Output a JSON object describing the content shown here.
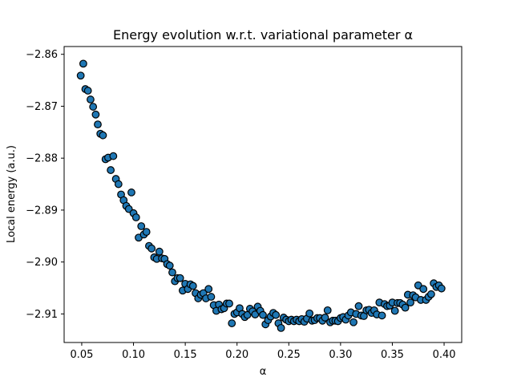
{
  "chart_data": {
    "type": "scatter",
    "title": "Energy evolution w.r.t. variational parameter α",
    "xlabel": "α",
    "ylabel": "Local energy (a.u.)",
    "xlim": [
      0.033,
      0.417
    ],
    "ylim": [
      -2.9155,
      -2.8585
    ],
    "xticks": [
      0.05,
      0.1,
      0.15,
      0.2,
      0.25,
      0.3,
      0.35,
      0.4
    ],
    "xtick_labels": [
      "0.05",
      "0.10",
      "0.15",
      "0.20",
      "0.25",
      "0.30",
      "0.35",
      "0.40"
    ],
    "yticks": [
      -2.86,
      -2.87,
      -2.88,
      -2.89,
      -2.9,
      -2.91
    ],
    "ytick_labels": [
      "−2.86",
      "−2.87",
      "−2.88",
      "−2.89",
      "−2.90",
      "−2.91"
    ],
    "grid": false,
    "marker_color": "#1f77b4",
    "marker_edge_color": "#000000",
    "points": [
      [
        0.049,
        -2.8641
      ],
      [
        0.0515,
        -2.8618
      ],
      [
        0.0535,
        -2.8667
      ],
      [
        0.056,
        -2.867
      ],
      [
        0.0585,
        -2.8687
      ],
      [
        0.061,
        -2.8701
      ],
      [
        0.0635,
        -2.8716
      ],
      [
        0.0655,
        -2.8735
      ],
      [
        0.068,
        -2.8753
      ],
      [
        0.0705,
        -2.8756
      ],
      [
        0.073,
        -2.8802
      ],
      [
        0.0755,
        -2.8799
      ],
      [
        0.078,
        -2.8823
      ],
      [
        0.0805,
        -2.8796
      ],
      [
        0.083,
        -2.884
      ],
      [
        0.0855,
        -2.885
      ],
      [
        0.088,
        -2.887
      ],
      [
        0.0905,
        -2.8881
      ],
      [
        0.093,
        -2.8892
      ],
      [
        0.0955,
        -2.8898
      ],
      [
        0.098,
        -2.8866
      ],
      [
        0.1,
        -2.8906
      ],
      [
        0.1025,
        -2.8914
      ],
      [
        0.105,
        -2.8953
      ],
      [
        0.1075,
        -2.8931
      ],
      [
        0.11,
        -2.8947
      ],
      [
        0.1125,
        -2.8942
      ],
      [
        0.115,
        -2.8969
      ],
      [
        0.1175,
        -2.8974
      ],
      [
        0.12,
        -2.8991
      ],
      [
        0.1225,
        -2.8994
      ],
      [
        0.125,
        -2.898
      ],
      [
        0.1275,
        -2.8993
      ],
      [
        0.13,
        -2.8994
      ],
      [
        0.1325,
        -2.9004
      ],
      [
        0.135,
        -2.9007
      ],
      [
        0.1375,
        -2.902
      ],
      [
        0.14,
        -2.9037
      ],
      [
        0.1425,
        -2.9031
      ],
      [
        0.145,
        -2.9031
      ],
      [
        0.1475,
        -2.9055
      ],
      [
        0.15,
        -2.9042
      ],
      [
        0.1525,
        -2.9052
      ],
      [
        0.155,
        -2.9043
      ],
      [
        0.1575,
        -2.9046
      ],
      [
        0.16,
        -2.906
      ],
      [
        0.1625,
        -2.907
      ],
      [
        0.165,
        -2.9063
      ],
      [
        0.1675,
        -2.906
      ],
      [
        0.17,
        -2.907
      ],
      [
        0.1725,
        -2.9052
      ],
      [
        0.175,
        -2.9067
      ],
      [
        0.1775,
        -2.9083
      ],
      [
        0.18,
        -2.9094
      ],
      [
        0.1825,
        -2.9082
      ],
      [
        0.185,
        -2.9091
      ],
      [
        0.1875,
        -2.9089
      ],
      [
        0.19,
        -2.908
      ],
      [
        0.1925,
        -2.908
      ],
      [
        0.195,
        -2.9118
      ],
      [
        0.1975,
        -2.91
      ],
      [
        0.2,
        -2.9097
      ],
      [
        0.2025,
        -2.9089
      ],
      [
        0.205,
        -2.91
      ],
      [
        0.2075,
        -2.9106
      ],
      [
        0.21,
        -2.9102
      ],
      [
        0.2125,
        -2.909
      ],
      [
        0.215,
        -2.9095
      ],
      [
        0.2175,
        -2.9101
      ],
      [
        0.22,
        -2.9086
      ],
      [
        0.2225,
        -2.9094
      ],
      [
        0.225,
        -2.9102
      ],
      [
        0.2275,
        -2.912
      ],
      [
        0.23,
        -2.9112
      ],
      [
        0.2325,
        -2.9105
      ],
      [
        0.235,
        -2.9098
      ],
      [
        0.2375,
        -2.9102
      ],
      [
        0.24,
        -2.9118
      ],
      [
        0.2425,
        -2.9127
      ],
      [
        0.245,
        -2.9107
      ],
      [
        0.2475,
        -2.9111
      ],
      [
        0.25,
        -2.9114
      ],
      [
        0.2525,
        -2.9111
      ],
      [
        0.255,
        -2.9114
      ],
      [
        0.2575,
        -2.9111
      ],
      [
        0.26,
        -2.9114
      ],
      [
        0.2625,
        -2.911
      ],
      [
        0.265,
        -2.9115
      ],
      [
        0.2675,
        -2.9109
      ],
      [
        0.27,
        -2.9099
      ],
      [
        0.2725,
        -2.9113
      ],
      [
        0.275,
        -2.9112
      ],
      [
        0.2775,
        -2.9108
      ],
      [
        0.28,
        -2.9108
      ],
      [
        0.2825,
        -2.9113
      ],
      [
        0.285,
        -2.9107
      ],
      [
        0.2875,
        -2.9093
      ],
      [
        0.29,
        -2.9116
      ],
      [
        0.2925,
        -2.9113
      ],
      [
        0.295,
        -2.9113
      ],
      [
        0.2975,
        -2.9114
      ],
      [
        0.3,
        -2.9108
      ],
      [
        0.3025,
        -2.9106
      ],
      [
        0.305,
        -2.9111
      ],
      [
        0.3075,
        -2.9103
      ],
      [
        0.31,
        -2.9097
      ],
      [
        0.3125,
        -2.9116
      ],
      [
        0.315,
        -2.91
      ],
      [
        0.3175,
        -2.9085
      ],
      [
        0.32,
        -2.9103
      ],
      [
        0.3225,
        -2.9104
      ],
      [
        0.325,
        -2.9093
      ],
      [
        0.3275,
        -2.9092
      ],
      [
        0.33,
        -2.9098
      ],
      [
        0.3325,
        -2.9093
      ],
      [
        0.335,
        -2.9101
      ],
      [
        0.3375,
        -2.9078
      ],
      [
        0.34,
        -2.9103
      ],
      [
        0.3425,
        -2.9081
      ],
      [
        0.345,
        -2.9085
      ],
      [
        0.3475,
        -2.9084
      ],
      [
        0.35,
        -2.9078
      ],
      [
        0.3525,
        -2.9094
      ],
      [
        0.355,
        -2.9079
      ],
      [
        0.3575,
        -2.9079
      ],
      [
        0.36,
        -2.9082
      ],
      [
        0.3625,
        -2.9088
      ],
      [
        0.365,
        -2.9063
      ],
      [
        0.3675,
        -2.9078
      ],
      [
        0.37,
        -2.9064
      ],
      [
        0.3725,
        -2.9068
      ],
      [
        0.375,
        -2.9045
      ],
      [
        0.3775,
        -2.9073
      ],
      [
        0.38,
        -2.9052
      ],
      [
        0.3825,
        -2.9073
      ],
      [
        0.385,
        -2.9067
      ],
      [
        0.3875,
        -2.9062
      ],
      [
        0.39,
        -2.9041
      ],
      [
        0.3925,
        -2.9048
      ],
      [
        0.395,
        -2.9045
      ],
      [
        0.3975,
        -2.9051
      ]
    ]
  }
}
